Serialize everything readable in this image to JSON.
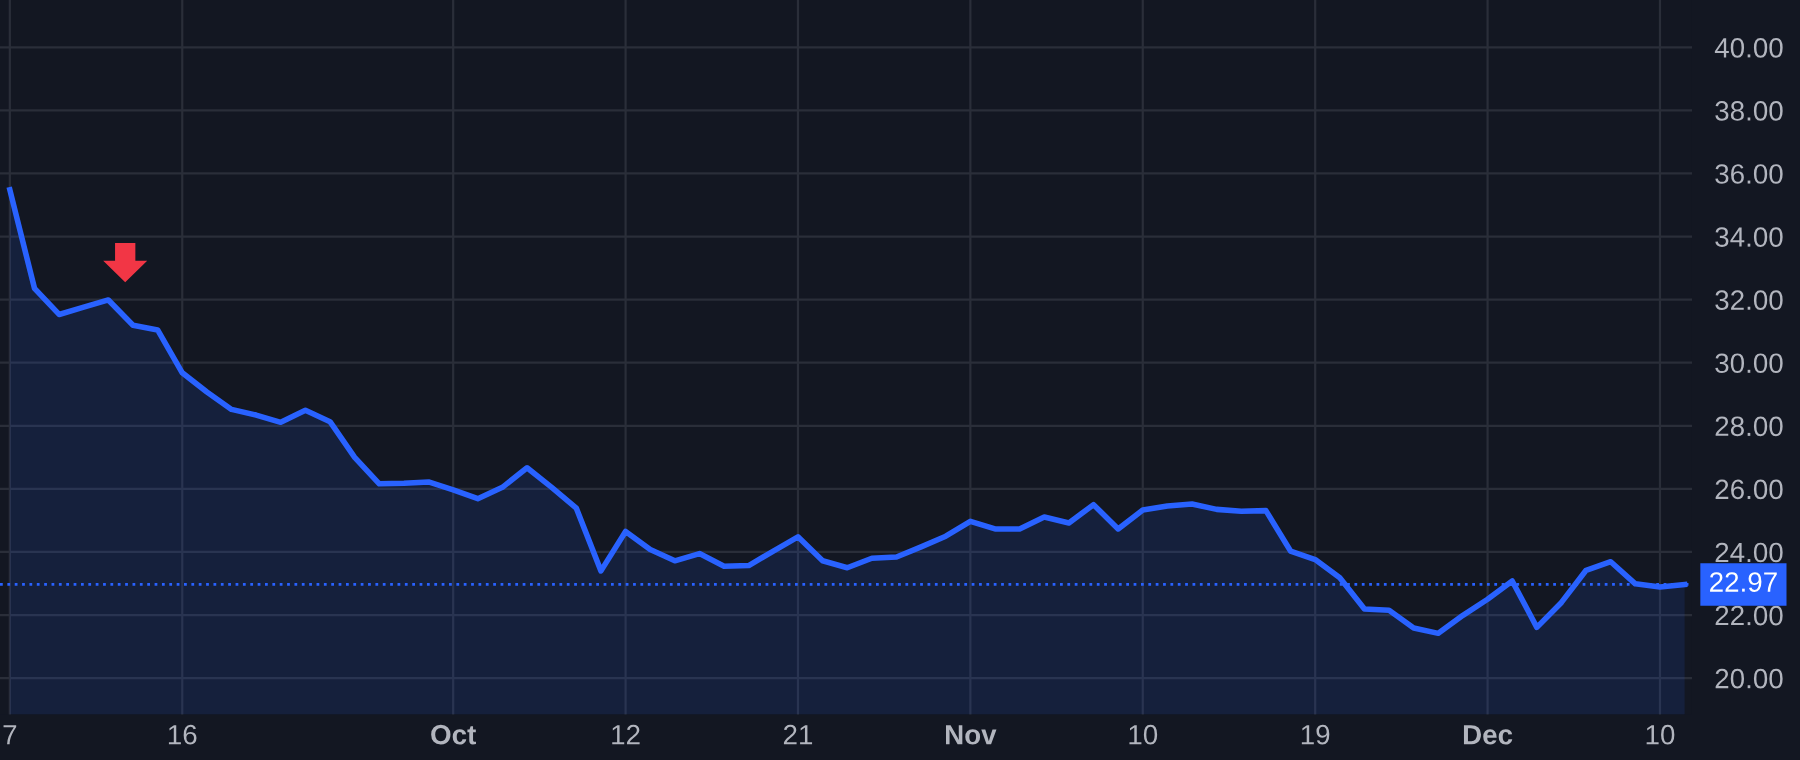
{
  "chart_data": {
    "type": "area",
    "categories": [
      "7",
      null,
      null,
      null,
      null,
      null,
      null,
      "16",
      null,
      null,
      null,
      null,
      null,
      null,
      null,
      null,
      null,
      null,
      "Oct",
      null,
      null,
      null,
      null,
      null,
      null,
      "12",
      null,
      null,
      null,
      null,
      null,
      null,
      "21",
      null,
      null,
      null,
      null,
      null,
      null,
      "Nov",
      null,
      null,
      null,
      null,
      null,
      null,
      "10",
      null,
      null,
      null,
      null,
      null,
      null,
      "19",
      null,
      null,
      null,
      null,
      null,
      null,
      "Dec",
      null,
      null,
      null,
      null,
      null,
      null,
      "10",
      null
    ],
    "series": [
      {
        "color": "#2962ff",
        "values": [
          35.48,
          32.36,
          31.53,
          31.76,
          31.99,
          31.19,
          31.04,
          29.68,
          29.07,
          28.52,
          28.34,
          28.11,
          28.49,
          28.13,
          27.0,
          26.16,
          26.18,
          26.22,
          25.97,
          25.69,
          26.05,
          26.67,
          26.05,
          25.39,
          23.4,
          24.65,
          24.08,
          23.72,
          23.95,
          23.55,
          23.57,
          24.03,
          24.48,
          23.72,
          23.5,
          23.8,
          23.84,
          24.16,
          24.5,
          24.97,
          24.73,
          24.73,
          25.11,
          24.92,
          25.5,
          24.73,
          25.33,
          25.46,
          25.52,
          25.35,
          25.29,
          25.31,
          24.03,
          23.76,
          23.18,
          22.19,
          22.15,
          21.59,
          21.42,
          21.99,
          22.5,
          23.08,
          21.61,
          22.4,
          23.42,
          23.69,
          22.99,
          22.89,
          22.97
        ]
      }
    ],
    "ylim": [
      18.85,
      41.5
    ],
    "yticks": [
      {
        "value": 20,
        "label": "20.00"
      },
      {
        "value": 22,
        "label": "22.00"
      },
      {
        "value": 24,
        "label": "24.00"
      },
      {
        "value": 26,
        "label": "26.00"
      },
      {
        "value": 28,
        "label": "28.00"
      },
      {
        "value": 30,
        "label": "30.00"
      },
      {
        "value": 32,
        "label": "32.00"
      },
      {
        "value": 34,
        "label": "34.00"
      },
      {
        "value": 36,
        "label": "36.00"
      },
      {
        "value": 38,
        "label": "38.00"
      },
      {
        "value": 40,
        "label": "40.00"
      }
    ],
    "ref_lines": [
      {
        "axis": "y",
        "value": 22.97,
        "label": "22.97",
        "color": "#2962ff",
        "line_style": "dotted"
      }
    ],
    "grid": true,
    "legend": false
  }
}
